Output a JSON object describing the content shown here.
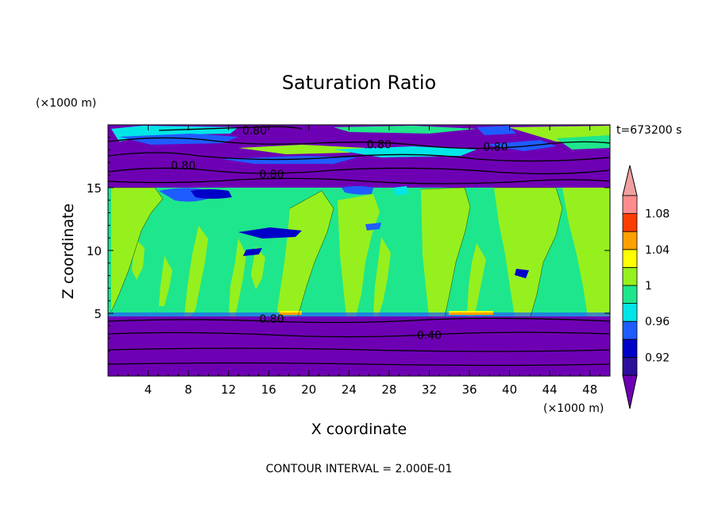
{
  "chart_data": {
    "type": "heatmap",
    "title": "Saturation Ratio",
    "xlabel": "X coordinate",
    "ylabel": "Z coordinate",
    "x_unit": "(×1000 m)",
    "y_unit": "(×1000 m)",
    "time_label": "t=673200 s",
    "footer": "CONTOUR INTERVAL = 2.000E-01",
    "xlim": [
      0,
      50
    ],
    "ylim": [
      0,
      20
    ],
    "x_ticks": [
      4,
      8,
      12,
      16,
      20,
      24,
      28,
      32,
      36,
      40,
      44,
      48
    ],
    "y_ticks": [
      5,
      10,
      15
    ],
    "colorbar": {
      "levels": [
        "0.92",
        "",
        "0.96",
        "",
        "1",
        "",
        "1.04",
        "",
        "1.08",
        ""
      ],
      "colors": [
        "#2c0f9a",
        "#0000c8",
        "#1e5cff",
        "#00e6e6",
        "#1ee68c",
        "#96f01e",
        "#ffff00",
        "#ffa000",
        "#ff3c00",
        "#ff8c8c"
      ],
      "under_color": "#6e00b4",
      "over_color": "#f0a0a0"
    },
    "contour_labels": [
      {
        "text": "0.80",
        "x": 14.6,
        "z": 19.5
      },
      {
        "text": "0.80",
        "x": 27.0,
        "z": 18.4
      },
      {
        "text": "0.80",
        "x": 38.6,
        "z": 18.2
      },
      {
        "text": "0.80",
        "x": 7.5,
        "z": 16.7
      },
      {
        "text": "0.80",
        "x": 16.3,
        "z": 16.0
      },
      {
        "text": "0.80",
        "x": 16.3,
        "z": 4.5
      },
      {
        "text": "0.40",
        "x": 32.0,
        "z": 3.2
      }
    ],
    "regions": {
      "stratosphere_top": {
        "z_range": [
          18.0,
          20.0
        ],
        "color_level": "under"
      },
      "upper_dry_layer": {
        "z_range": [
          15.0,
          18.0
        ],
        "color_level": "under"
      },
      "cloud_layer": {
        "z_range": [
          5.0,
          15.0
        ],
        "dominant_levels": [
          "1",
          "0.96-1"
        ]
      },
      "boundary_layer": {
        "z_range": [
          0,
          5.0
        ],
        "color_level": "under"
      }
    }
  }
}
